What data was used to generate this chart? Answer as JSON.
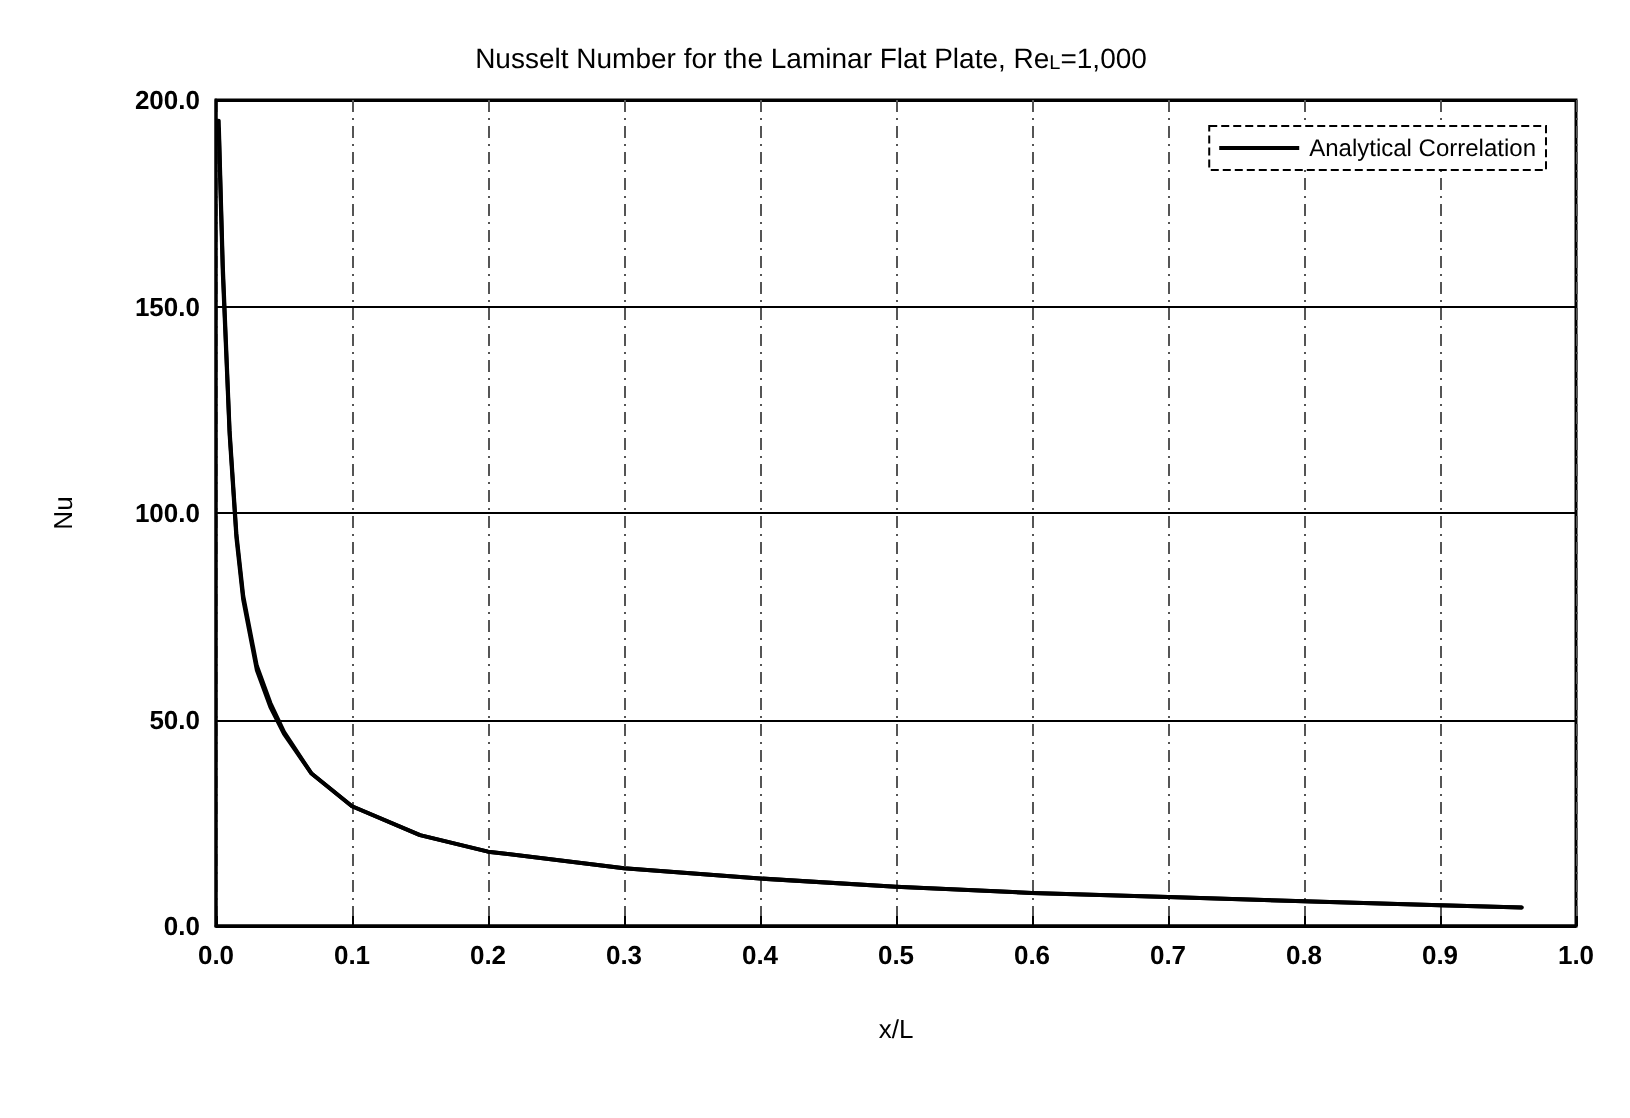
{
  "chart_data": {
    "type": "line",
    "title": "Nusselt Number for the Laminar Flat Plate, Re$_{L}$=1,000",
    "xlabel": "x/L",
    "ylabel": "Nu",
    "series": [
      {
        "color": "#000000",
        "x": [
          0.002,
          0.005,
          0.01,
          0.015,
          0.02,
          0.03,
          0.04,
          0.05,
          0.07,
          0.1,
          0.15,
          0.2,
          0.3,
          0.4,
          0.5,
          0.6,
          0.7,
          0.8,
          0.9,
          0.96
        ],
        "values": [
          195,
          160,
          120,
          95,
          80,
          63,
          54,
          47,
          37,
          29,
          22,
          18,
          14,
          11.5,
          9.5,
          8,
          7,
          6,
          5,
          4.5
        ]
      },
      {
        "name": "Analytical Correlation",
        "color": "#000000",
        "x": [
          0.002,
          0.005,
          0.01,
          0.015,
          0.02,
          0.03,
          0.04,
          0.05,
          0.07,
          0.1,
          0.15,
          0.2,
          0.3,
          0.4,
          0.5,
          0.6,
          0.7,
          0.8,
          0.9,
          0.96
        ],
        "values": [
          193,
          158,
          119,
          94,
          79,
          62,
          53,
          46.5,
          37,
          29,
          22,
          18,
          14,
          11.5,
          9.5,
          8,
          7,
          6,
          5,
          4.5
        ]
      }
    ],
    "xlim": [
      0,
      1
    ],
    "xticks": [
      {
        "value": 0,
        "label": "0.0"
      },
      {
        "value": 0.1,
        "label": "0.1"
      },
      {
        "value": 0.2,
        "label": "0.2"
      },
      {
        "value": 0.3,
        "label": "0.3"
      },
      {
        "value": 0.4,
        "label": "0.4"
      },
      {
        "value": 0.5,
        "label": "0.5"
      },
      {
        "value": 0.6,
        "label": "0.6"
      },
      {
        "value": 0.7,
        "label": "0.7"
      },
      {
        "value": 0.8,
        "label": "0.8"
      },
      {
        "value": 0.9,
        "label": "0.9"
      },
      {
        "value": 1,
        "label": "1.0"
      }
    ],
    "ylim": [
      0,
      200
    ],
    "yticks": [
      {
        "value": 0,
        "label": "0.0"
      },
      {
        "value": 50,
        "label": "50.0"
      },
      {
        "value": 100,
        "label": "100.0"
      },
      {
        "value": 150,
        "label": "150.0"
      },
      {
        "value": 200,
        "label": "200.0"
      }
    ],
    "grid": true,
    "legend": "top right",
    "marker": "none",
    "line_style": "solid"
  }
}
